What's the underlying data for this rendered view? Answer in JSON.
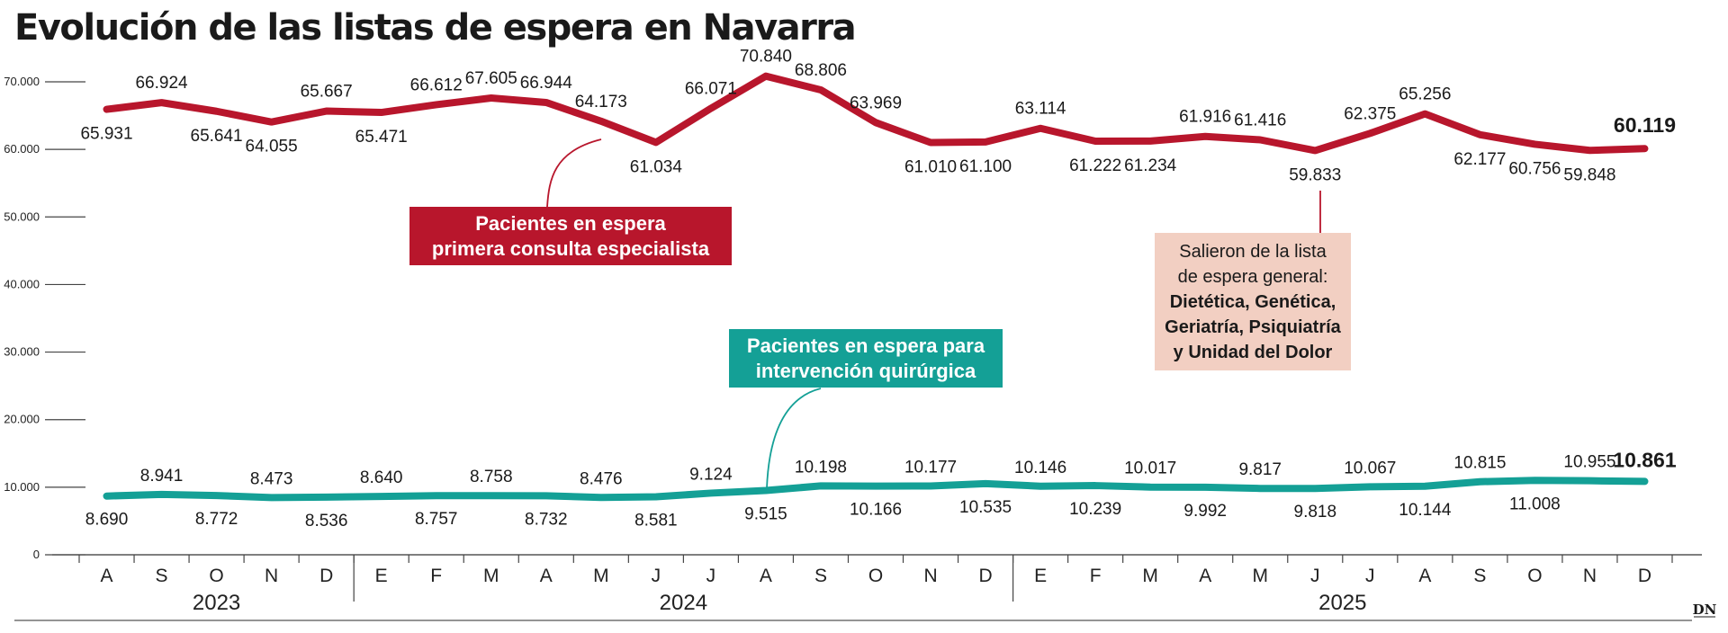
{
  "title": "Evolución de las listas de espera en Navarra",
  "brand": "DN",
  "colors": {
    "red": "#b8162c",
    "teal": "#14a096",
    "note_bg": "#f2cfc2"
  },
  "chart_data": {
    "type": "line",
    "title": "Evolución de las listas de espera en Navarra",
    "categories": [
      "A",
      "S",
      "O",
      "N",
      "D",
      "E",
      "F",
      "M",
      "A",
      "M",
      "J",
      "J",
      "A",
      "S",
      "O",
      "N",
      "D",
      "E",
      "F",
      "M",
      "A",
      "M",
      "J",
      "J",
      "A",
      "S",
      "O",
      "N",
      "D"
    ],
    "x": [
      "2023-08",
      "2023-08-15",
      "2023-09",
      "2023-09-15",
      "2023-10",
      "2023-10-15",
      "2023-11",
      "2023-11-15",
      "2023-12",
      "2023-12-15",
      "2024-01",
      "2024-01-15",
      "2024-02",
      "2024-02-15",
      "2024-03",
      "2024-03-15",
      "2024-04",
      "2024-04-15",
      "2024-05",
      "2024-05-15",
      "2024-06",
      "2024-06-15",
      "2024-07",
      "2024-07-15",
      "2024-08",
      "2024-08-15",
      "2024-09",
      "2024-09-15",
      "2024-10",
      "2024-10-15",
      "2024-11",
      "2024-11-15",
      "2024-12",
      "2024-12-15",
      "2025-01",
      "2025-01-15",
      "2025-02",
      "2025-02-15",
      "2025-03",
      "2025-03-15",
      "2025-04",
      "2025-04-15",
      "2025-05",
      "2025-05-15",
      "2025-06",
      "2025-06-15",
      "2025-07",
      "2025-07-15",
      "2025-08",
      "2025-08-15",
      "2025-09",
      "2025-09-15",
      "2025-10",
      "2025-10-15",
      "2025-11",
      "2025-11-15",
      "2025-12"
    ],
    "years": [
      "2023",
      "2024",
      "2025"
    ],
    "ylim": [
      0,
      70000
    ],
    "yticks": [
      "0",
      "10.000",
      "20.000",
      "30.000",
      "40.000",
      "50.000",
      "60.000",
      "70.000"
    ],
    "grid": false,
    "series": [
      {
        "name": "Pacientes en espera primera consulta especialista",
        "values": [
          65931,
          66924,
          65641,
          64055,
          65667,
          65471,
          66612,
          67605,
          66944,
          64173,
          61034,
          66071,
          70840,
          68806,
          63969,
          61010,
          61100,
          63114,
          61222,
          61234,
          61916,
          61416,
          59833,
          62375,
          65256,
          62177,
          60756,
          59848,
          60119
        ],
        "labels": [
          "65.931",
          "66.924",
          "65.641",
          "64.055",
          "65.667",
          "65.471",
          "66.612",
          "67.605",
          "66.944",
          "64.173",
          "61.034",
          "66.071",
          "70.840",
          "68.806",
          "63.969",
          "61.010",
          "61.100",
          "63.114",
          "61.222",
          "61.234",
          "61.916",
          "61.416",
          "59.833",
          "62.375",
          "65.256",
          "62.177",
          "60.756",
          "59.848",
          "60.119"
        ]
      },
      {
        "name": "Pacientes en espera para intervención quirúrgica",
        "values": [
          8690,
          8941,
          8772,
          8473,
          8536,
          8640,
          8757,
          8758,
          8732,
          8476,
          8581,
          9124,
          9515,
          10198,
          10166,
          10177,
          10535,
          10146,
          10239,
          10017,
          9992,
          9817,
          9818,
          10067,
          10144,
          10815,
          11008,
          10955,
          10861
        ],
        "labels": [
          "8.690",
          "8.941",
          "8.772",
          "8.473",
          "8.536",
          "8.640",
          "8.757",
          "8.758",
          "8.732",
          "8.476",
          "8.581",
          "9.124",
          "9.515",
          "10.198",
          "10.166",
          "10.177",
          "10.535",
          "10.146",
          "10.239",
          "10.017",
          "9.992",
          "9.817",
          "9.818",
          "10.067",
          "10.144",
          "10.815",
          "11.008",
          "10.955",
          "10.861"
        ]
      }
    ],
    "annotations": {
      "red_box": [
        "Pacientes en espera",
        "primera consulta especialista"
      ],
      "teal_box": [
        "Pacientes en espera para",
        "intervención quirúrgica"
      ],
      "note": [
        "Salieron de la lista",
        "de espera general:",
        "Dietética, Genética,",
        "Geriatría, Psiquiatría",
        "y Unidad del Dolor"
      ]
    }
  }
}
